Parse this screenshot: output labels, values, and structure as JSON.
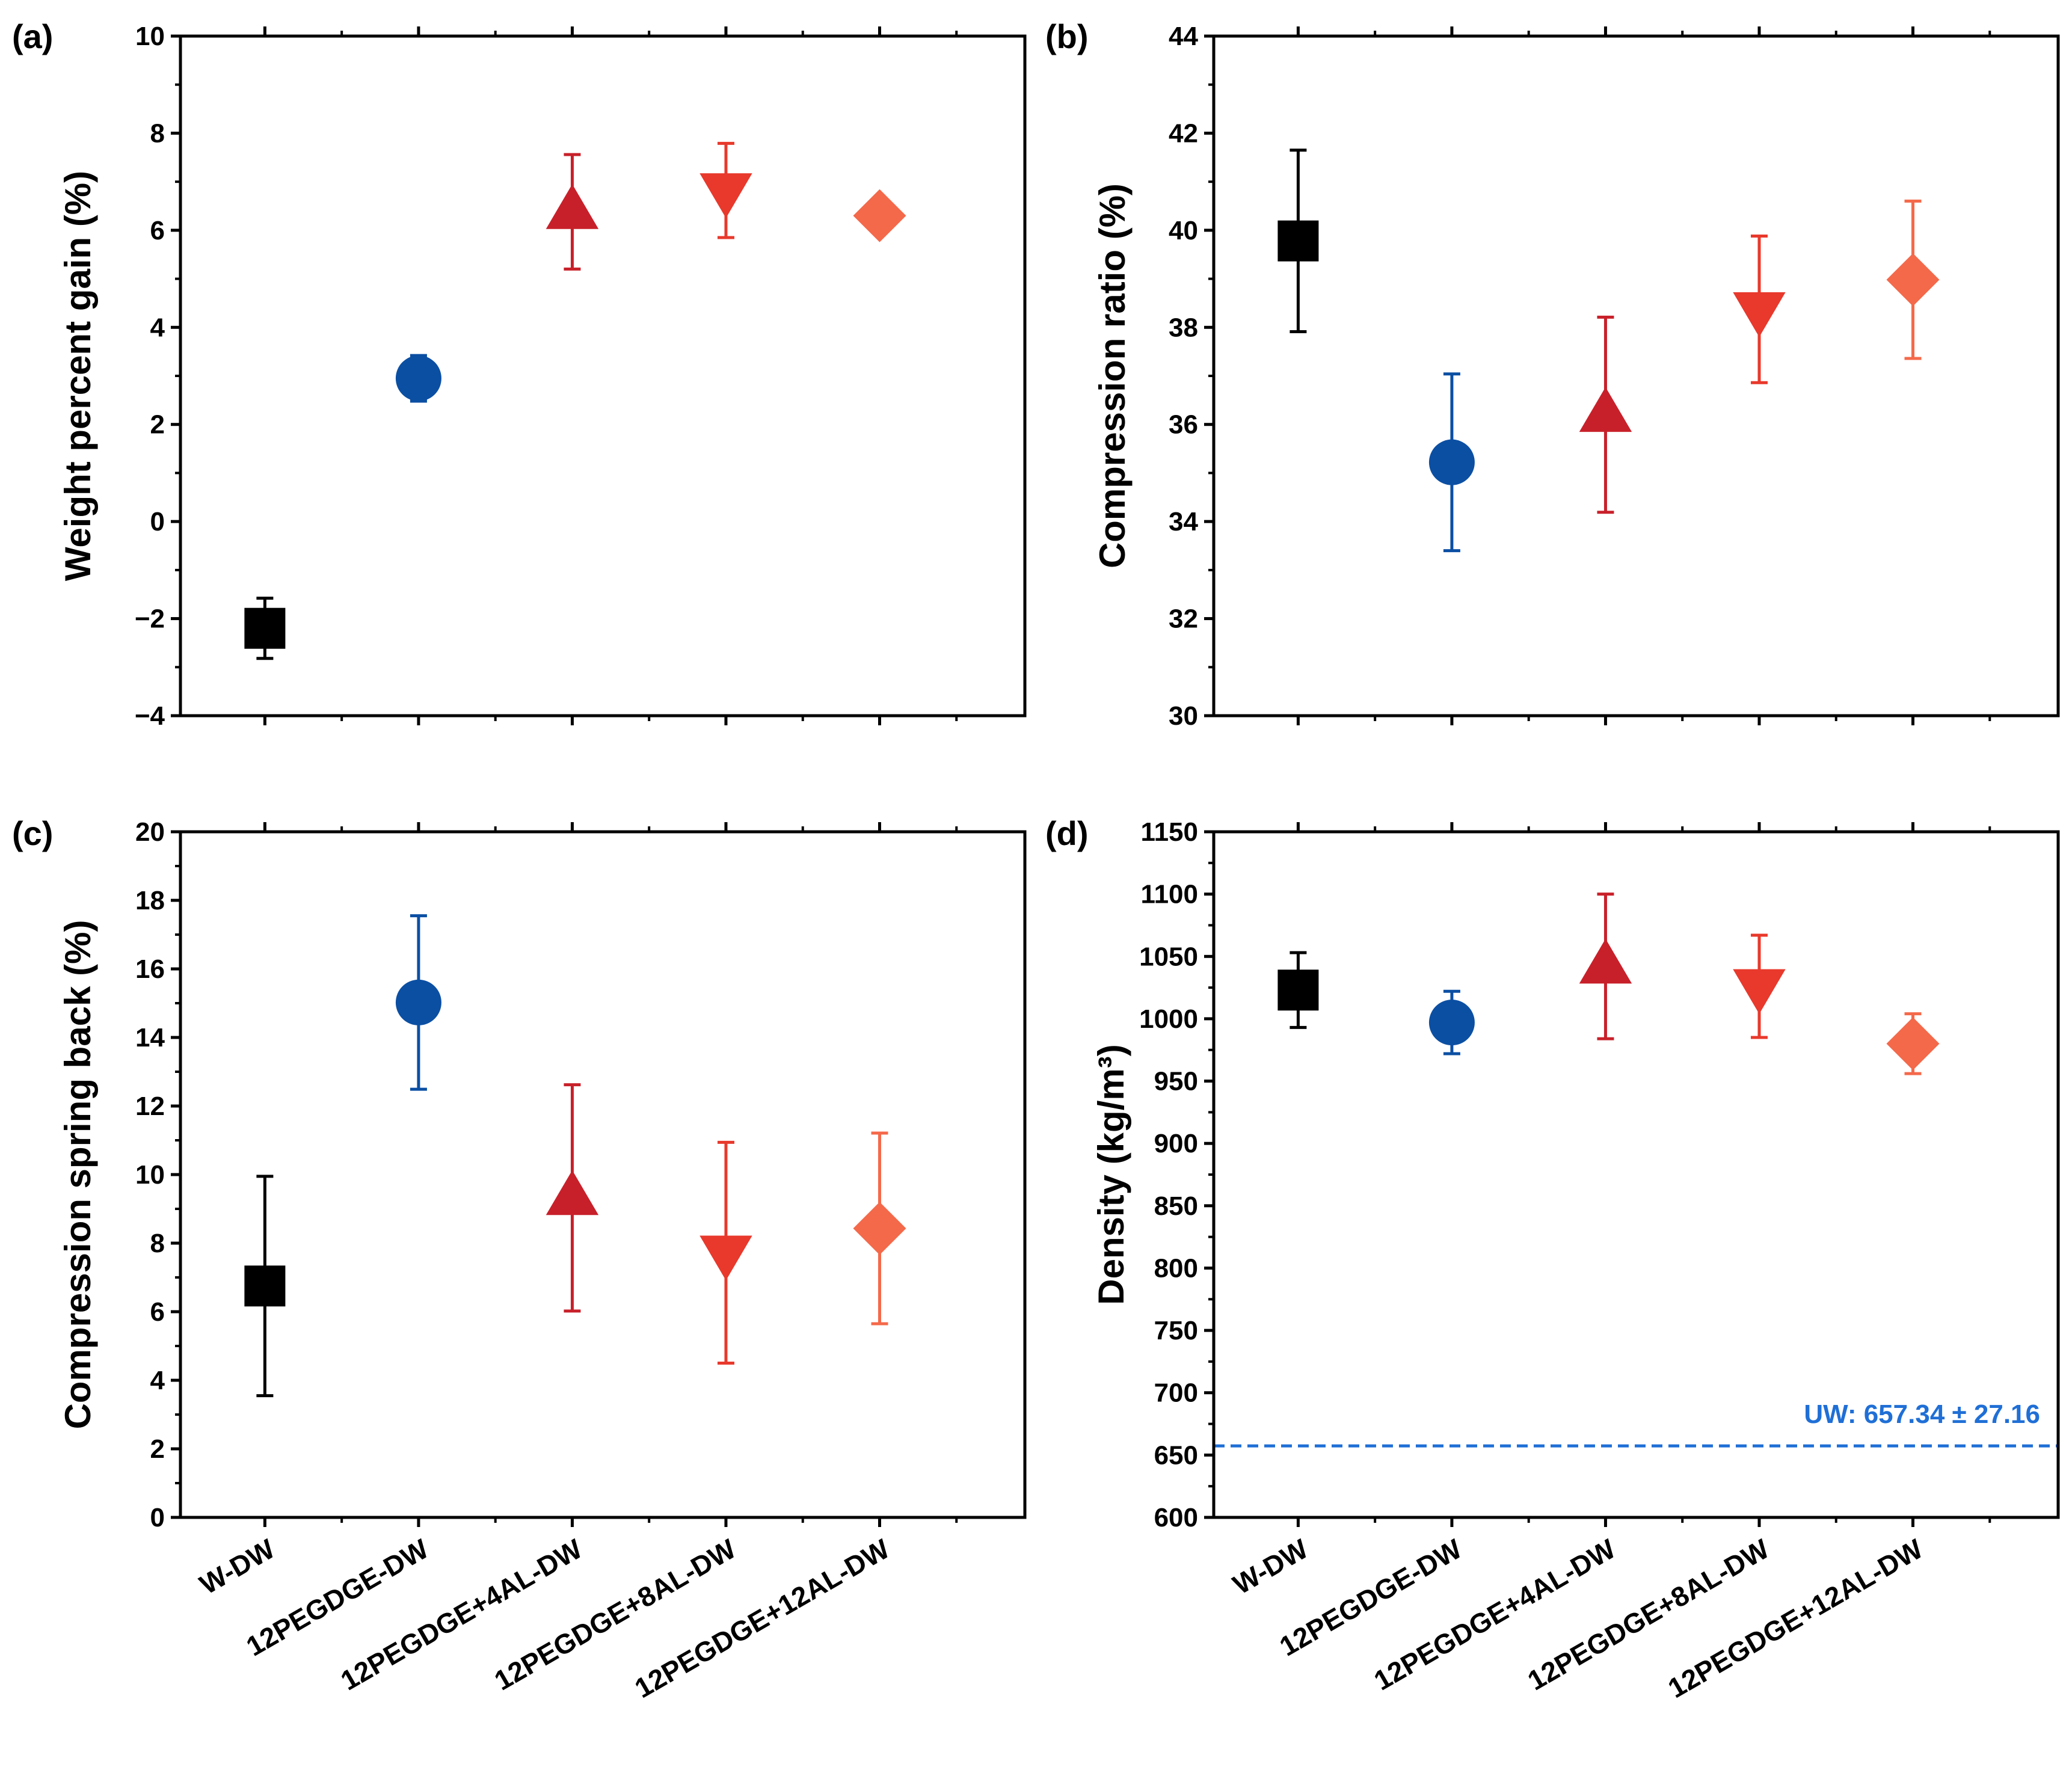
{
  "categories": [
    "W-DW",
    "12PEGDGE-DW",
    "12PEGDGE+4AL-DW",
    "12PEGDGE+8AL-DW",
    "12PEGDGE+12AL-DW"
  ],
  "series_style": [
    {
      "marker": "square",
      "color": "#000000"
    },
    {
      "marker": "circle",
      "color": "#0b4fa3"
    },
    {
      "marker": "triangle-up",
      "color": "#c8202a"
    },
    {
      "marker": "triangle-down",
      "color": "#e8392c"
    },
    {
      "marker": "diamond",
      "color": "#f4694a"
    }
  ],
  "chart_data": [
    {
      "type": "scatter",
      "panel_label": "(a)",
      "ylabel": "Weight percent gain (%)",
      "ylim": [
        -4,
        10
      ],
      "yticks": [
        -4,
        -2,
        0,
        2,
        4,
        6,
        8,
        10
      ],
      "ytick_labels": [
        "−4",
        "−2",
        "0",
        "2",
        "4",
        "6",
        "8",
        "10"
      ],
      "values": [
        -2.2,
        2.95,
        6.38,
        6.82,
        6.3
      ],
      "errors": [
        0.62,
        0.47,
        1.18,
        0.97,
        0.3
      ],
      "show_xlabels": false
    },
    {
      "type": "scatter",
      "panel_label": "(b)",
      "ylabel": "Compression ratio (%)",
      "ylim": [
        30,
        44
      ],
      "yticks": [
        30,
        32,
        34,
        36,
        38,
        40,
        42,
        44
      ],
      "ytick_labels": [
        "30",
        "32",
        "34",
        "36",
        "38",
        "40",
        "42",
        "44"
      ],
      "values": [
        39.78,
        35.22,
        36.2,
        38.37,
        38.98
      ],
      "errors": [
        1.87,
        1.82,
        2.01,
        1.51,
        1.62
      ],
      "show_xlabels": false
    },
    {
      "type": "scatter",
      "panel_label": "(c)",
      "ylabel": "Compression spring back (%)",
      "ylim": [
        0,
        20
      ],
      "yticks": [
        0,
        2,
        4,
        6,
        8,
        10,
        12,
        14,
        16,
        18,
        20
      ],
      "ytick_labels": [
        "0",
        "2",
        "4",
        "6",
        "8",
        "10",
        "12",
        "14",
        "16",
        "18",
        "20"
      ],
      "values": [
        6.75,
        15.02,
        9.32,
        7.72,
        8.43
      ],
      "errors": [
        3.2,
        2.53,
        3.3,
        3.22,
        2.78
      ],
      "show_xlabels": true
    },
    {
      "type": "scatter",
      "panel_label": "(d)",
      "ylabel": "Density (kg/m³)",
      "ylim": [
        600,
        1150
      ],
      "yticks": [
        600,
        650,
        700,
        750,
        800,
        850,
        900,
        950,
        1000,
        1050,
        1100,
        1150
      ],
      "ytick_labels": [
        "600",
        "650",
        "700",
        "750",
        "800",
        "850",
        "900",
        "950",
        "1000",
        "1050",
        "1100",
        "1150"
      ],
      "values": [
        1023,
        997,
        1042,
        1026,
        980
      ],
      "errors": [
        30,
        25,
        58,
        41,
        24
      ],
      "show_xlabels": true,
      "reference": {
        "value": 657.34,
        "label": "UW: 657.34 ± 27.16",
        "color": "#1f6fd6"
      }
    }
  ]
}
